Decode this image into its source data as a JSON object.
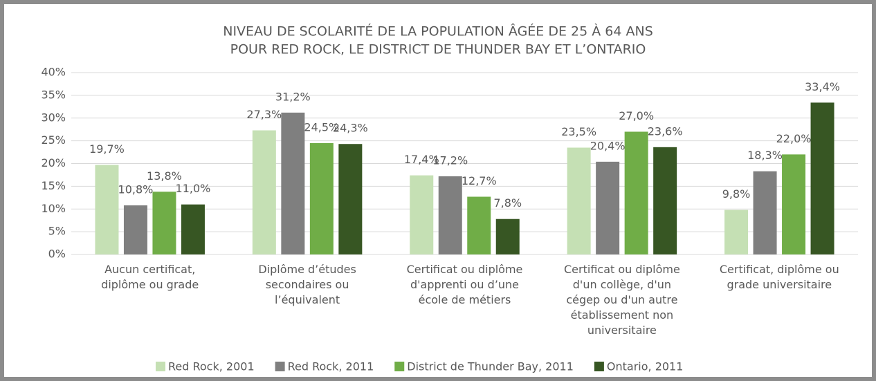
{
  "chart_data": {
    "type": "bar",
    "title": [
      "NIVEAU DE SCOLARITÉ DE LA POPULATION ÂGÉE DE 25 À 64 ANS",
      "POUR RED ROCK, LE DISTRICT DE THUNDER BAY ET L’ONTARIO"
    ],
    "categories": [
      "Aucun certificat,\ndiplôme ou grade",
      "Diplôme d’études\nsecondaires ou\nl’équivalent",
      "Certificat ou diplôme\nd'apprenti ou d’une\nécole de métiers",
      "Certificat ou diplôme\nd'un collège, d'un\ncégep ou d'un autre\nétablissement non\nuniversitaire",
      "Certificat, diplôme ou\ngrade universitaire"
    ],
    "series": [
      {
        "name": "Red Rock, 2001",
        "color": "#c5e0b4",
        "values": [
          19.7,
          27.3,
          17.4,
          23.5,
          9.8
        ],
        "value_labels": [
          "19,7%",
          "27,3%",
          "17,4%",
          "23,5%",
          "9,8%"
        ]
      },
      {
        "name": "Red Rock, 2011",
        "color": "#7f7f7f",
        "values": [
          10.8,
          31.2,
          17.2,
          20.4,
          18.3
        ],
        "value_labels": [
          "10,8%",
          "31,2%",
          "17,2%",
          "20,4%",
          "18,3%"
        ]
      },
      {
        "name": "District de Thunder Bay, 2011",
        "color": "#70ad47",
        "values": [
          13.8,
          24.5,
          12.7,
          27.0,
          22.0
        ],
        "value_labels": [
          "13,8%",
          "24,5%",
          "12,7%",
          "27,0%",
          "22,0%"
        ]
      },
      {
        "name": "Ontario, 2011",
        "color": "#375623",
        "values": [
          11.0,
          24.3,
          7.8,
          23.6,
          33.4
        ],
        "value_labels": [
          "11,0%",
          "24,3%",
          "7,8%",
          "23,6%",
          "33,4%"
        ]
      }
    ],
    "ylim": [
      0,
      40
    ],
    "yticks": [
      {
        "value": 0,
        "label": "0%"
      },
      {
        "value": 5,
        "label": "5%"
      },
      {
        "value": 10,
        "label": "10%"
      },
      {
        "value": 15,
        "label": "15%"
      },
      {
        "value": 20,
        "label": "20%"
      },
      {
        "value": 25,
        "label": "25%"
      },
      {
        "value": 30,
        "label": "30%"
      },
      {
        "value": 35,
        "label": "35%"
      },
      {
        "value": 40,
        "label": "40%"
      }
    ],
    "grid": true,
    "legend": "bottom"
  }
}
